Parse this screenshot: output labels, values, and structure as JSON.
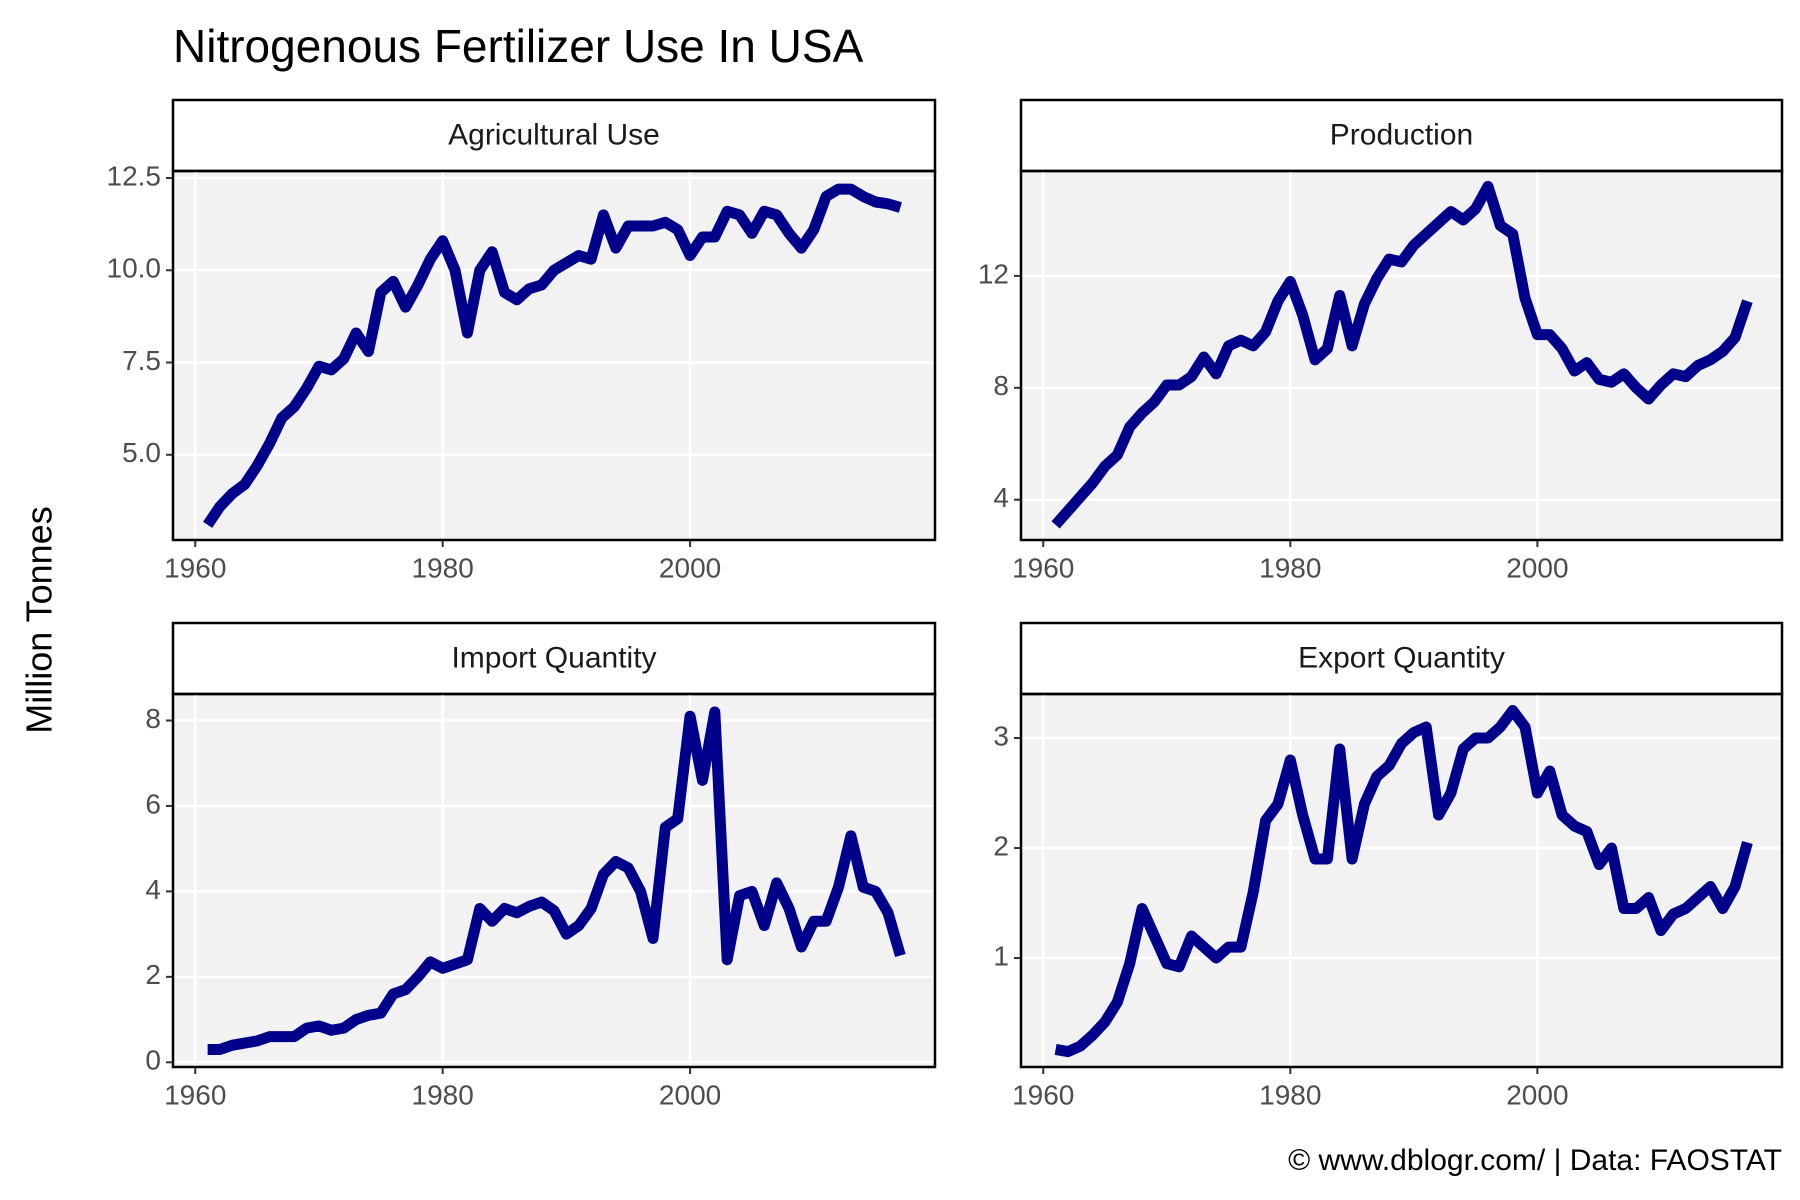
{
  "title": "Nitrogenous Fertilizer Use In USA",
  "y_label": "Million Tonnes",
  "caption": "© www.dblogr.com/ | Data: FAOSTAT",
  "chart_data": [
    {
      "type": "line",
      "title": "Agricultural Use",
      "color": "#00008b",
      "grid": true,
      "x": [
        1961,
        1962,
        1963,
        1964,
        1965,
        1966,
        1967,
        1968,
        1969,
        1970,
        1971,
        1972,
        1973,
        1974,
        1975,
        1976,
        1977,
        1978,
        1979,
        1980,
        1981,
        1982,
        1983,
        1984,
        1985,
        1986,
        1987,
        1988,
        1989,
        1990,
        1991,
        1992,
        1993,
        1994,
        1995,
        1996,
        1997,
        1998,
        1999,
        2000,
        2001,
        2002,
        2003,
        2004,
        2005,
        2006,
        2007,
        2008,
        2009,
        2010,
        2011,
        2012,
        2013,
        2014,
        2015,
        2016,
        2017
      ],
      "values": [
        3.1,
        3.6,
        3.95,
        4.2,
        4.7,
        5.3,
        6.0,
        6.3,
        6.8,
        7.4,
        7.3,
        7.6,
        8.3,
        7.8,
        9.4,
        9.7,
        9.0,
        9.6,
        10.3,
        10.8,
        10.0,
        8.3,
        10.0,
        10.5,
        9.4,
        9.2,
        9.5,
        9.6,
        10.0,
        10.2,
        10.4,
        10.3,
        11.5,
        10.6,
        11.2,
        11.2,
        11.2,
        11.3,
        11.1,
        10.4,
        10.9,
        10.9,
        11.6,
        11.5,
        11.0,
        11.6,
        11.5,
        11.0,
        10.6,
        11.1,
        12.0,
        12.2,
        12.2,
        12.0,
        11.85,
        11.8,
        11.7
      ],
      "xlim": [
        1958.2,
        2019.8
      ],
      "xticks": [
        1960,
        1980,
        2000
      ],
      "ylim": [
        2.69,
        12.69
      ],
      "yticks": [
        {
          "value": 5,
          "label": "5.0"
        },
        7.5,
        {
          "value": 10,
          "label": "10.0"
        },
        12.5
      ]
    },
    {
      "type": "line",
      "title": "Production",
      "color": "#00008b",
      "grid": true,
      "x": [
        1961,
        1962,
        1963,
        1964,
        1965,
        1966,
        1967,
        1968,
        1969,
        1970,
        1971,
        1972,
        1973,
        1974,
        1975,
        1976,
        1977,
        1978,
        1979,
        1980,
        1981,
        1982,
        1983,
        1984,
        1985,
        1986,
        1987,
        1988,
        1989,
        1990,
        1991,
        1992,
        1993,
        1994,
        1995,
        1996,
        1997,
        1998,
        1999,
        2000,
        2001,
        2002,
        2003,
        2004,
        2005,
        2006,
        2007,
        2008,
        2009,
        2010,
        2011,
        2012,
        2013,
        2014,
        2015,
        2016,
        2017
      ],
      "values": [
        3.1,
        3.6,
        4.1,
        4.6,
        5.2,
        5.6,
        6.6,
        7.1,
        7.5,
        8.1,
        8.1,
        8.4,
        9.1,
        8.5,
        9.5,
        9.7,
        9.5,
        10.0,
        11.1,
        11.8,
        10.6,
        9.0,
        9.4,
        11.3,
        9.5,
        11.0,
        11.9,
        12.6,
        12.5,
        13.1,
        13.5,
        13.9,
        14.3,
        14.0,
        14.4,
        15.2,
        13.8,
        13.5,
        11.2,
        9.9,
        9.9,
        9.4,
        8.6,
        8.9,
        8.3,
        8.2,
        8.5,
        8.0,
        7.6,
        8.1,
        8.5,
        8.4,
        8.8,
        9.0,
        9.3,
        9.8,
        11.1
      ],
      "xlim": [
        1958.2,
        2019.8
      ],
      "xticks": [
        1960,
        1980,
        2000
      ],
      "ylim": [
        2.56,
        15.75
      ],
      "yticks": [
        4,
        8,
        12
      ]
    },
    {
      "type": "line",
      "title": "Import Quantity",
      "color": "#00008b",
      "grid": true,
      "x": [
        1961,
        1962,
        1963,
        1964,
        1965,
        1966,
        1967,
        1968,
        1969,
        1970,
        1971,
        1972,
        1973,
        1974,
        1975,
        1976,
        1977,
        1978,
        1979,
        1980,
        1981,
        1982,
        1983,
        1984,
        1985,
        1986,
        1987,
        1988,
        1989,
        1990,
        1991,
        1992,
        1993,
        1994,
        1995,
        1996,
        1997,
        1998,
        1999,
        2000,
        2001,
        2002,
        2003,
        2004,
        2005,
        2006,
        2007,
        2008,
        2009,
        2010,
        2011,
        2012,
        2013,
        2014,
        2015,
        2016,
        2017
      ],
      "values": [
        0.3,
        0.3,
        0.4,
        0.45,
        0.5,
        0.6,
        0.6,
        0.6,
        0.8,
        0.85,
        0.75,
        0.8,
        1.0,
        1.1,
        1.15,
        1.6,
        1.7,
        2.0,
        2.35,
        2.2,
        2.3,
        2.4,
        3.6,
        3.3,
        3.6,
        3.5,
        3.65,
        3.75,
        3.55,
        3.0,
        3.2,
        3.6,
        4.4,
        4.7,
        4.55,
        4.0,
        2.9,
        5.5,
        5.7,
        8.1,
        6.6,
        8.2,
        2.4,
        3.9,
        4.0,
        3.2,
        4.2,
        3.6,
        2.7,
        3.3,
        3.3,
        4.1,
        5.3,
        4.1,
        4.0,
        3.5,
        2.5
      ],
      "xlim": [
        1958.2,
        2019.8
      ],
      "xticks": [
        1960,
        1980,
        2000
      ],
      "ylim": [
        -0.11,
        8.62
      ],
      "yticks": [
        0,
        2,
        4,
        6,
        8
      ]
    },
    {
      "type": "line",
      "title": "Export Quantity",
      "color": "#00008b",
      "grid": true,
      "x": [
        1961,
        1962,
        1963,
        1964,
        1965,
        1966,
        1967,
        1968,
        1969,
        1970,
        1971,
        1972,
        1973,
        1974,
        1975,
        1976,
        1977,
        1978,
        1979,
        1980,
        1981,
        1982,
        1983,
        1984,
        1985,
        1986,
        1987,
        1988,
        1989,
        1990,
        1991,
        1992,
        1993,
        1994,
        1995,
        1996,
        1997,
        1998,
        1999,
        2000,
        2001,
        2002,
        2003,
        2004,
        2005,
        2006,
        2007,
        2008,
        2009,
        2010,
        2011,
        2012,
        2013,
        2014,
        2015,
        2016,
        2017
      ],
      "values": [
        0.17,
        0.15,
        0.2,
        0.3,
        0.42,
        0.6,
        0.95,
        1.45,
        1.2,
        0.95,
        0.92,
        1.2,
        1.1,
        1.0,
        1.1,
        1.1,
        1.6,
        2.25,
        2.4,
        2.8,
        2.3,
        1.9,
        1.9,
        2.9,
        1.9,
        2.4,
        2.65,
        2.75,
        2.95,
        3.05,
        3.1,
        2.3,
        2.5,
        2.9,
        3.0,
        3.0,
        3.1,
        3.25,
        3.1,
        2.5,
        2.7,
        2.3,
        2.2,
        2.15,
        1.85,
        2.0,
        1.45,
        1.45,
        1.55,
        1.25,
        1.4,
        1.45,
        1.55,
        1.65,
        1.45,
        1.65,
        2.05
      ],
      "xlim": [
        1958.2,
        2019.8
      ],
      "xticks": [
        1960,
        1980,
        2000
      ],
      "ylim": [
        0.01,
        3.4
      ],
      "yticks": [
        1,
        2,
        3
      ]
    }
  ]
}
